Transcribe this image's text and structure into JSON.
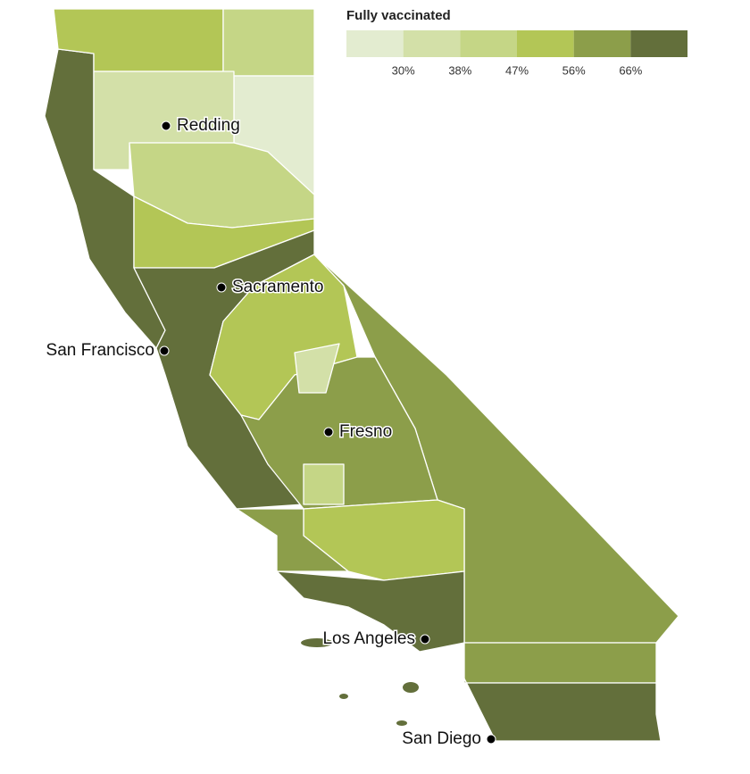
{
  "legend": {
    "title": "Fully vaccinated",
    "colors": [
      "#e3ecd0",
      "#d3e0a8",
      "#c5d686",
      "#b3c656",
      "#8c9e4a",
      "#636f3b"
    ],
    "ticks": [
      {
        "value": 30,
        "label": "30%"
      },
      {
        "value": 38,
        "label": "38%"
      },
      {
        "value": 47,
        "label": "47%"
      },
      {
        "value": 56,
        "label": "56%"
      },
      {
        "value": 66,
        "label": "66%"
      }
    ]
  },
  "regions": [
    {
      "color": "#636f3b"
    },
    {
      "color": "#b3c656"
    },
    {
      "color": "#c5d686"
    },
    {
      "color": "#e3ecd0"
    },
    {
      "color": "#d3e0a8"
    },
    {
      "color": "#c5d686"
    },
    {
      "color": "#b3c656"
    },
    {
      "color": "#636f3b"
    },
    {
      "color": "#b3c656"
    },
    {
      "color": "#8c9e4a"
    },
    {
      "color": "#8c9e4a"
    },
    {
      "color": "#d3e0a8"
    },
    {
      "color": "#b3c656"
    },
    {
      "color": "#c5d686"
    },
    {
      "color": "#8c9e4a"
    },
    {
      "color": "#636f3b"
    },
    {
      "color": "#8c9e4a"
    },
    {
      "color": "#636f3b"
    }
  ],
  "cities": [
    {
      "label": "Redding"
    },
    {
      "label": "Sacramento"
    },
    {
      "label": "San Francisco"
    },
    {
      "label": "Fresno"
    },
    {
      "label": "Los Angeles"
    },
    {
      "label": "San Diego"
    }
  ]
}
